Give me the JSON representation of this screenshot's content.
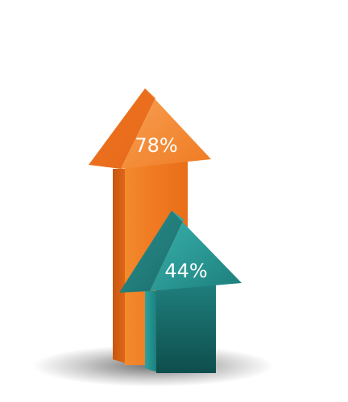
{
  "chart_data": {
    "type": "bar",
    "style": "3d-arrows",
    "categories": [
      "",
      ""
    ],
    "values": [
      78,
      44
    ],
    "value_labels": [
      "78%",
      "44%"
    ],
    "unit": "%",
    "ylim": [
      0,
      100
    ],
    "title": "",
    "xlabel": "",
    "ylabel": "",
    "grid": false,
    "legend": "none",
    "colors": [
      "#f07a22",
      "#1f8583"
    ]
  }
}
